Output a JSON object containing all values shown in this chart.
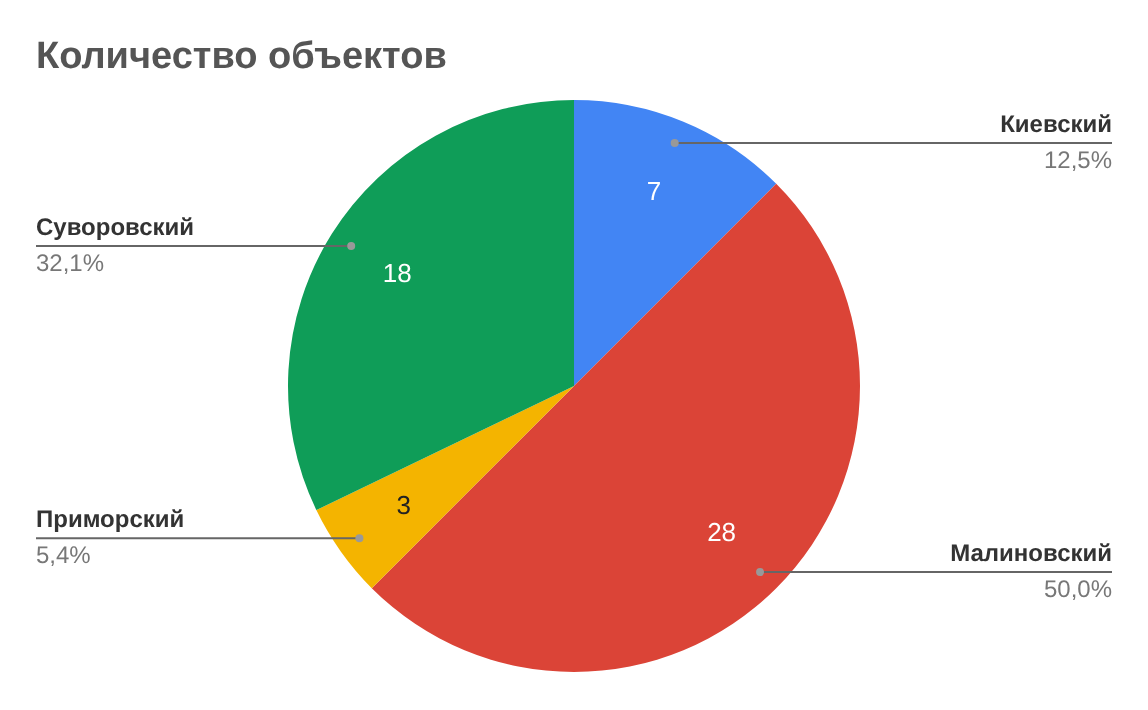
{
  "chart_data": {
    "type": "pie",
    "title": "Количество объектов",
    "categories": [
      "Киевский",
      "Малиновский",
      "Приморский",
      "Суворовский"
    ],
    "values": [
      7,
      28,
      3,
      18
    ],
    "colors": [
      "#4285f4",
      "#db4437",
      "#f4b400",
      "#0f9d58"
    ],
    "data_labels": true,
    "annotations": [
      "12,5%",
      "50,0%",
      "5,4%",
      "32,1%"
    ],
    "legend": false
  }
}
